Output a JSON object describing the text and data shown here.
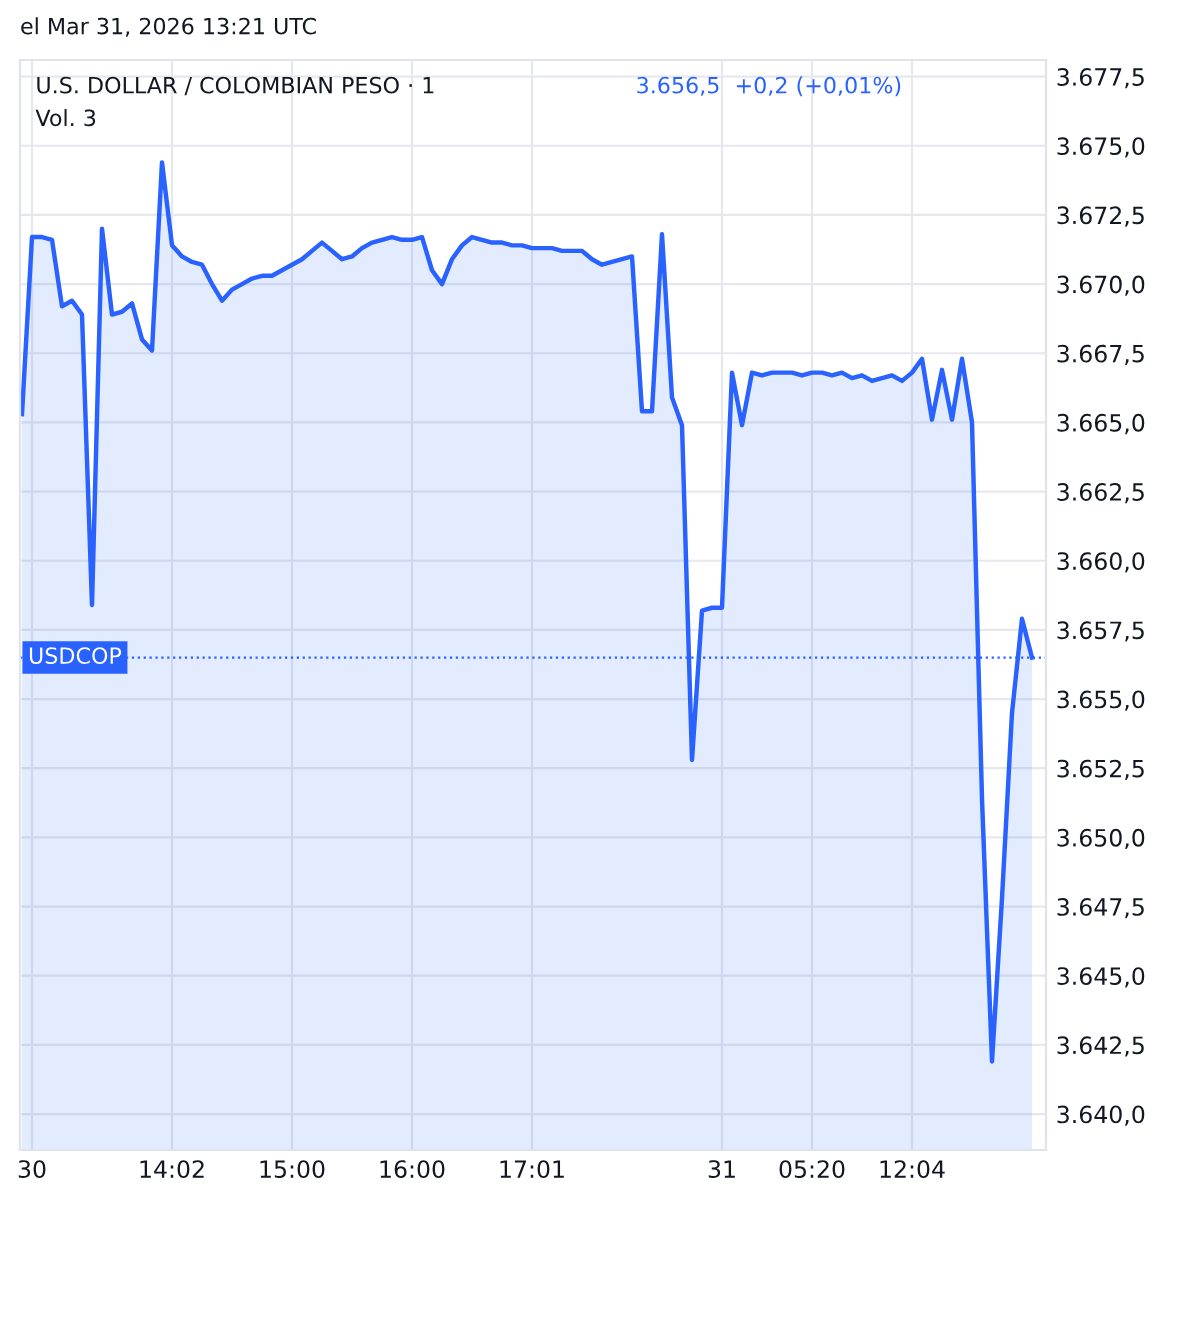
{
  "chart_data": {
    "type": "area",
    "title": "U.S. DOLLAR / COLOMBIAN PESO · 1",
    "subtitle": "3.656,5  +0,2 (+0,01%)",
    "annotations": [
      "Vol. 3",
      "el Mar 31, 2026 13:21 UTC"
    ],
    "categories": [
      null,
      "30",
      null,
      null,
      null,
      null,
      null,
      null,
      null,
      null,
      null,
      null,
      null,
      null,
      null,
      "14:02",
      null,
      null,
      null,
      null,
      null,
      null,
      null,
      null,
      null,
      null,
      null,
      "15:00",
      null,
      null,
      null,
      null,
      null,
      null,
      null,
      null,
      null,
      null,
      null,
      "16:00",
      null,
      null,
      null,
      null,
      null,
      null,
      null,
      null,
      null,
      null,
      null,
      "17:01",
      null,
      null,
      null,
      null,
      null,
      null,
      null,
      null,
      null,
      null,
      null,
      null,
      null,
      null,
      null,
      null,
      null,
      null,
      "31",
      null,
      null,
      null,
      null,
      null,
      null,
      null,
      null,
      "05:20",
      null,
      null,
      null,
      null,
      null,
      null,
      null,
      null,
      null,
      "12:04",
      null,
      null,
      null,
      null,
      null,
      null,
      null,
      null,
      null,
      null,
      null,
      null
    ],
    "series": [
      {
        "color": "#2962ff",
        "values": [
          3665.3,
          3671.7,
          3671.7,
          3671.6,
          3669.2,
          3669.4,
          3668.9,
          3658.4,
          3672.0,
          3668.9,
          3669.0,
          3669.3,
          3668.0,
          3667.6,
          3674.4,
          3671.4,
          3671.0,
          3670.8,
          3670.7,
          3670.0,
          3669.4,
          3669.8,
          3670.0,
          3670.2,
          3670.3,
          3670.3,
          3670.5,
          3670.7,
          3670.9,
          3671.2,
          3671.5,
          3671.2,
          3670.9,
          3671.0,
          3671.3,
          3671.5,
          3671.6,
          3671.7,
          3671.6,
          3671.6,
          3671.7,
          3670.5,
          3670.0,
          3670.9,
          3671.4,
          3671.7,
          3671.6,
          3671.5,
          3671.5,
          3671.4,
          3671.4,
          3671.3,
          3671.3,
          3671.3,
          3671.2,
          3671.2,
          3671.2,
          3670.9,
          3670.7,
          3670.8,
          3670.9,
          3671.0,
          3665.4,
          3665.4,
          3671.8,
          3665.9,
          3664.9,
          3652.8,
          3658.2,
          3658.3,
          3658.3,
          3666.8,
          3664.9,
          3666.8,
          3666.7,
          3666.8,
          3666.8,
          3666.8,
          3666.7,
          3666.8,
          3666.8,
          3666.7,
          3666.8,
          3666.6,
          3666.7,
          3666.5,
          3666.6,
          3666.7,
          3666.5,
          3666.8,
          3667.3,
          3665.1,
          3666.9,
          3665.1,
          3667.3,
          3665.0,
          3651.4,
          3641.9,
          3647.8,
          3654.5,
          3657.9,
          3656.5
        ]
      }
    ],
    "ylim": [
      3638.7,
      3678.1
    ],
    "yticks": [
      {
        "value": 3640,
        "label": "3.640,0"
      },
      {
        "value": 3642.5,
        "label": "3.642,5"
      },
      {
        "value": 3645,
        "label": "3.645,0"
      },
      {
        "value": 3647.5,
        "label": "3.647,5"
      },
      {
        "value": 3650,
        "label": "3.650,0"
      },
      {
        "value": 3652.5,
        "label": "3.652,5"
      },
      {
        "value": 3655,
        "label": "3.655,0"
      },
      {
        "value": 3657.5,
        "label": "3.657,5"
      },
      {
        "value": 3660,
        "label": "3.660,0"
      },
      {
        "value": 3662.5,
        "label": "3.662,5"
      },
      {
        "value": 3665,
        "label": "3.665,0"
      },
      {
        "value": 3667.5,
        "label": "3.667,5"
      },
      {
        "value": 3670,
        "label": "3.670,0"
      },
      {
        "value": 3672.5,
        "label": "3.672,5"
      },
      {
        "value": 3675,
        "label": "3.675,0"
      },
      {
        "value": 3677.5,
        "label": "3.677,5"
      }
    ],
    "ref_lines": [
      {
        "axis": "y",
        "value": 3656.5,
        "label": "USDCOP",
        "color": "#2962ff",
        "line_style": "dotted"
      }
    ],
    "grid": true,
    "line_style": "solid",
    "marker": "none"
  }
}
